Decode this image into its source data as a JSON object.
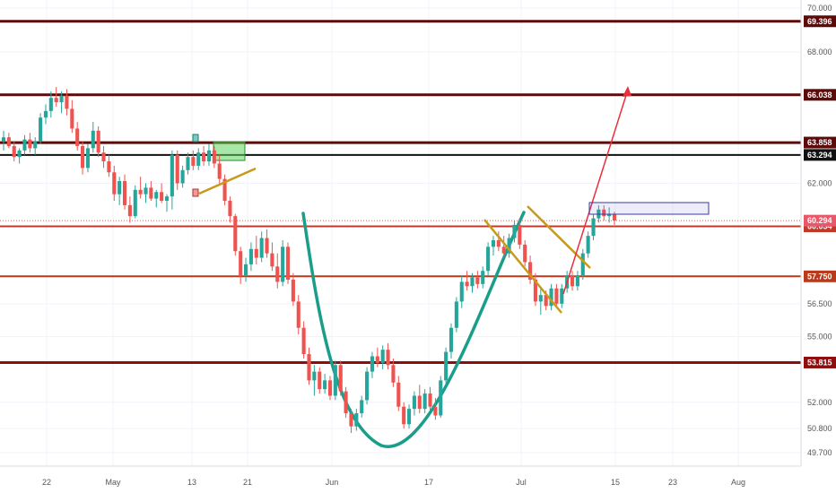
{
  "chart_data": {
    "type": "candlestick",
    "x_ticks": [
      "22",
      "May",
      "13",
      "21",
      "Jun",
      "17",
      "Jul",
      "15",
      "23",
      "Aug"
    ],
    "y_ticks": [
      "70.000",
      "68.000",
      "62.000",
      "56.500",
      "55.000",
      "52.000",
      "50.800",
      "49.700"
    ],
    "ylim": [
      49.2,
      70.4
    ],
    "grid": true,
    "up_color": "#26a69a",
    "down_color": "#ef5350",
    "horizontal_levels": [
      {
        "value": 69.396,
        "label": "69.396",
        "color": "#5c0a0a"
      },
      {
        "value": 66.038,
        "label": "66.038",
        "color": "#5c0a0a"
      },
      {
        "value": 63.858,
        "label": "63.858",
        "color": "#5c0a0a"
      },
      {
        "value": 63.294,
        "label": "63.294",
        "color": "#111111"
      },
      {
        "value": 60.034,
        "label": "60.034",
        "color": "#c0392b"
      },
      {
        "value": 57.75,
        "label": "57.750",
        "color": "#b83a1a"
      },
      {
        "value": 53.815,
        "label": "53.815",
        "color": "#8e0e0e"
      }
    ],
    "last_price": {
      "value": 60.294,
      "label": "60.294",
      "color": "#e8586a"
    },
    "candles": [
      {
        "o": 63.9,
        "h": 64.4,
        "l": 63.5,
        "c": 64.1
      },
      {
        "o": 64.1,
        "h": 64.3,
        "l": 63.6,
        "c": 63.7
      },
      {
        "o": 63.7,
        "h": 63.9,
        "l": 63.0,
        "c": 63.2
      },
      {
        "o": 63.2,
        "h": 63.6,
        "l": 62.9,
        "c": 63.5
      },
      {
        "o": 63.5,
        "h": 64.2,
        "l": 63.3,
        "c": 64.0
      },
      {
        "o": 64.0,
        "h": 64.3,
        "l": 63.4,
        "c": 63.6
      },
      {
        "o": 63.6,
        "h": 64.1,
        "l": 63.3,
        "c": 63.9
      },
      {
        "o": 63.9,
        "h": 65.2,
        "l": 63.8,
        "c": 65.0
      },
      {
        "o": 65.0,
        "h": 65.6,
        "l": 64.7,
        "c": 65.3
      },
      {
        "o": 65.3,
        "h": 66.2,
        "l": 65.0,
        "c": 65.9
      },
      {
        "o": 65.9,
        "h": 66.4,
        "l": 65.5,
        "c": 65.7
      },
      {
        "o": 65.7,
        "h": 66.2,
        "l": 65.2,
        "c": 66.0
      },
      {
        "o": 66.0,
        "h": 66.3,
        "l": 65.1,
        "c": 65.4
      },
      {
        "o": 65.4,
        "h": 65.8,
        "l": 64.3,
        "c": 64.5
      },
      {
        "o": 64.5,
        "h": 64.8,
        "l": 63.5,
        "c": 63.7
      },
      {
        "o": 63.7,
        "h": 63.9,
        "l": 62.4,
        "c": 62.7
      },
      {
        "o": 62.7,
        "h": 63.8,
        "l": 62.5,
        "c": 63.6
      },
      {
        "o": 63.6,
        "h": 64.8,
        "l": 63.4,
        "c": 64.4
      },
      {
        "o": 64.4,
        "h": 64.6,
        "l": 63.2,
        "c": 63.4
      },
      {
        "o": 63.4,
        "h": 63.7,
        "l": 62.7,
        "c": 63.0
      },
      {
        "o": 63.0,
        "h": 63.3,
        "l": 62.3,
        "c": 62.5
      },
      {
        "o": 62.5,
        "h": 62.8,
        "l": 61.2,
        "c": 61.5
      },
      {
        "o": 61.5,
        "h": 62.3,
        "l": 61.0,
        "c": 62.1
      },
      {
        "o": 62.1,
        "h": 62.4,
        "l": 60.8,
        "c": 61.0
      },
      {
        "o": 61.0,
        "h": 61.4,
        "l": 60.2,
        "c": 60.5
      },
      {
        "o": 60.5,
        "h": 61.9,
        "l": 60.4,
        "c": 61.7
      },
      {
        "o": 61.7,
        "h": 62.3,
        "l": 61.3,
        "c": 61.5
      },
      {
        "o": 61.5,
        "h": 62.0,
        "l": 61.1,
        "c": 61.8
      },
      {
        "o": 61.8,
        "h": 62.1,
        "l": 61.2,
        "c": 61.3
      },
      {
        "o": 61.3,
        "h": 61.7,
        "l": 60.9,
        "c": 61.6
      },
      {
        "o": 61.6,
        "h": 62.0,
        "l": 61.1,
        "c": 61.2
      },
      {
        "o": 61.2,
        "h": 61.5,
        "l": 60.7,
        "c": 61.4
      },
      {
        "o": 61.4,
        "h": 63.5,
        "l": 60.8,
        "c": 63.3
      },
      {
        "o": 63.3,
        "h": 63.5,
        "l": 61.7,
        "c": 62.0
      },
      {
        "o": 62.0,
        "h": 62.8,
        "l": 61.8,
        "c": 62.6
      },
      {
        "o": 62.6,
        "h": 63.4,
        "l": 62.4,
        "c": 63.2
      },
      {
        "o": 63.2,
        "h": 63.5,
        "l": 62.6,
        "c": 62.8
      },
      {
        "o": 62.8,
        "h": 63.6,
        "l": 62.6,
        "c": 63.4
      },
      {
        "o": 63.4,
        "h": 63.7,
        "l": 62.8,
        "c": 63.0
      },
      {
        "o": 63.0,
        "h": 63.8,
        "l": 62.8,
        "c": 63.5
      },
      {
        "o": 63.5,
        "h": 63.7,
        "l": 62.7,
        "c": 62.9
      },
      {
        "o": 62.9,
        "h": 63.3,
        "l": 62.0,
        "c": 62.2
      },
      {
        "o": 62.2,
        "h": 62.4,
        "l": 61.0,
        "c": 61.2
      },
      {
        "o": 61.2,
        "h": 61.4,
        "l": 60.2,
        "c": 60.5
      },
      {
        "o": 60.5,
        "h": 60.6,
        "l": 58.7,
        "c": 58.9
      },
      {
        "o": 58.9,
        "h": 59.1,
        "l": 57.4,
        "c": 57.8
      },
      {
        "o": 57.8,
        "h": 58.6,
        "l": 57.5,
        "c": 58.3
      },
      {
        "o": 58.3,
        "h": 59.3,
        "l": 58.0,
        "c": 59.0
      },
      {
        "o": 59.0,
        "h": 59.6,
        "l": 58.3,
        "c": 58.6
      },
      {
        "o": 58.6,
        "h": 59.8,
        "l": 58.4,
        "c": 59.5
      },
      {
        "o": 59.5,
        "h": 59.9,
        "l": 58.6,
        "c": 58.8
      },
      {
        "o": 58.8,
        "h": 59.3,
        "l": 58.0,
        "c": 58.2
      },
      {
        "o": 58.2,
        "h": 58.8,
        "l": 57.2,
        "c": 57.5
      },
      {
        "o": 57.5,
        "h": 59.4,
        "l": 57.3,
        "c": 59.1
      },
      {
        "o": 59.1,
        "h": 59.3,
        "l": 57.4,
        "c": 57.6
      },
      {
        "o": 57.6,
        "h": 57.9,
        "l": 56.4,
        "c": 56.6
      },
      {
        "o": 56.6,
        "h": 56.9,
        "l": 55.1,
        "c": 55.4
      },
      {
        "o": 55.4,
        "h": 55.7,
        "l": 54.0,
        "c": 54.2
      },
      {
        "o": 54.2,
        "h": 54.5,
        "l": 52.8,
        "c": 53.0
      },
      {
        "o": 53.0,
        "h": 53.7,
        "l": 52.3,
        "c": 53.4
      },
      {
        "o": 53.4,
        "h": 53.6,
        "l": 52.4,
        "c": 52.6
      },
      {
        "o": 52.6,
        "h": 53.3,
        "l": 52.4,
        "c": 53.0
      },
      {
        "o": 53.0,
        "h": 53.2,
        "l": 52.1,
        "c": 52.3
      },
      {
        "o": 52.3,
        "h": 53.9,
        "l": 52.1,
        "c": 53.7
      },
      {
        "o": 53.7,
        "h": 53.9,
        "l": 52.3,
        "c": 52.5
      },
      {
        "o": 52.5,
        "h": 52.7,
        "l": 51.3,
        "c": 51.5
      },
      {
        "o": 51.5,
        "h": 51.7,
        "l": 50.6,
        "c": 50.9
      },
      {
        "o": 50.9,
        "h": 51.7,
        "l": 50.7,
        "c": 51.5
      },
      {
        "o": 51.5,
        "h": 52.3,
        "l": 51.3,
        "c": 52.1
      },
      {
        "o": 52.1,
        "h": 53.6,
        "l": 51.9,
        "c": 53.4
      },
      {
        "o": 53.4,
        "h": 54.3,
        "l": 53.1,
        "c": 54.1
      },
      {
        "o": 54.1,
        "h": 54.5,
        "l": 53.6,
        "c": 53.8
      },
      {
        "o": 53.8,
        "h": 54.6,
        "l": 53.5,
        "c": 54.4
      },
      {
        "o": 54.4,
        "h": 54.7,
        "l": 53.5,
        "c": 53.7
      },
      {
        "o": 53.7,
        "h": 54.0,
        "l": 52.7,
        "c": 52.9
      },
      {
        "o": 52.9,
        "h": 53.2,
        "l": 51.6,
        "c": 51.8
      },
      {
        "o": 51.8,
        "h": 52.0,
        "l": 50.8,
        "c": 51.0
      },
      {
        "o": 51.0,
        "h": 51.9,
        "l": 50.8,
        "c": 51.7
      },
      {
        "o": 51.7,
        "h": 52.5,
        "l": 51.4,
        "c": 52.3
      },
      {
        "o": 52.3,
        "h": 52.8,
        "l": 51.5,
        "c": 51.7
      },
      {
        "o": 51.7,
        "h": 52.6,
        "l": 51.5,
        "c": 52.4
      },
      {
        "o": 52.4,
        "h": 52.7,
        "l": 51.6,
        "c": 51.8
      },
      {
        "o": 51.8,
        "h": 52.2,
        "l": 51.2,
        "c": 51.4
      },
      {
        "o": 51.4,
        "h": 53.2,
        "l": 51.3,
        "c": 53.0
      },
      {
        "o": 53.0,
        "h": 54.5,
        "l": 52.8,
        "c": 54.3
      },
      {
        "o": 54.3,
        "h": 55.6,
        "l": 54.0,
        "c": 55.4
      },
      {
        "o": 55.4,
        "h": 56.8,
        "l": 55.2,
        "c": 56.6
      },
      {
        "o": 56.6,
        "h": 57.8,
        "l": 56.3,
        "c": 57.5
      },
      {
        "o": 57.5,
        "h": 58.0,
        "l": 57.1,
        "c": 57.3
      },
      {
        "o": 57.3,
        "h": 57.9,
        "l": 57.0,
        "c": 57.7
      },
      {
        "o": 57.7,
        "h": 58.0,
        "l": 57.2,
        "c": 57.4
      },
      {
        "o": 57.4,
        "h": 58.2,
        "l": 57.2,
        "c": 58.0
      },
      {
        "o": 58.0,
        "h": 59.3,
        "l": 57.8,
        "c": 59.1
      },
      {
        "o": 59.1,
        "h": 59.6,
        "l": 58.7,
        "c": 59.4
      },
      {
        "o": 59.4,
        "h": 59.8,
        "l": 58.9,
        "c": 59.1
      },
      {
        "o": 59.1,
        "h": 59.6,
        "l": 58.6,
        "c": 58.8
      },
      {
        "o": 58.8,
        "h": 59.7,
        "l": 58.6,
        "c": 59.5
      },
      {
        "o": 59.5,
        "h": 60.3,
        "l": 59.3,
        "c": 60.1
      },
      {
        "o": 60.1,
        "h": 60.4,
        "l": 59.0,
        "c": 59.2
      },
      {
        "o": 59.2,
        "h": 59.4,
        "l": 58.2,
        "c": 58.4
      },
      {
        "o": 58.4,
        "h": 58.7,
        "l": 57.4,
        "c": 57.6
      },
      {
        "o": 57.6,
        "h": 57.9,
        "l": 56.4,
        "c": 56.6
      },
      {
        "o": 56.6,
        "h": 57.2,
        "l": 56.0,
        "c": 56.9
      },
      {
        "o": 56.9,
        "h": 57.1,
        "l": 56.2,
        "c": 56.4
      },
      {
        "o": 56.4,
        "h": 57.4,
        "l": 56.2,
        "c": 57.2
      },
      {
        "o": 57.2,
        "h": 57.4,
        "l": 56.3,
        "c": 56.5
      },
      {
        "o": 56.5,
        "h": 57.4,
        "l": 56.3,
        "c": 57.2
      },
      {
        "o": 57.2,
        "h": 58.0,
        "l": 57.0,
        "c": 57.8
      },
      {
        "o": 57.8,
        "h": 58.0,
        "l": 57.1,
        "c": 57.3
      },
      {
        "o": 57.3,
        "h": 58.0,
        "l": 57.1,
        "c": 57.8
      },
      {
        "o": 57.8,
        "h": 59.0,
        "l": 57.6,
        "c": 58.8
      },
      {
        "o": 58.8,
        "h": 59.8,
        "l": 58.6,
        "c": 59.6
      },
      {
        "o": 59.6,
        "h": 60.6,
        "l": 59.4,
        "c": 60.4
      },
      {
        "o": 60.4,
        "h": 61.0,
        "l": 60.2,
        "c": 60.8
      },
      {
        "o": 60.8,
        "h": 61.0,
        "l": 60.3,
        "c": 60.5
      },
      {
        "o": 60.5,
        "h": 60.9,
        "l": 60.2,
        "c": 60.6
      },
      {
        "o": 60.6,
        "h": 60.7,
        "l": 60.1,
        "c": 60.3
      }
    ]
  },
  "annotations": {
    "cup_color": "#1a9e8a",
    "channel_color": "#c99a1a",
    "arrow_color": "#e8303a",
    "green_box_color": "#5fd35f",
    "range_box_color": "#3a3aa0"
  }
}
